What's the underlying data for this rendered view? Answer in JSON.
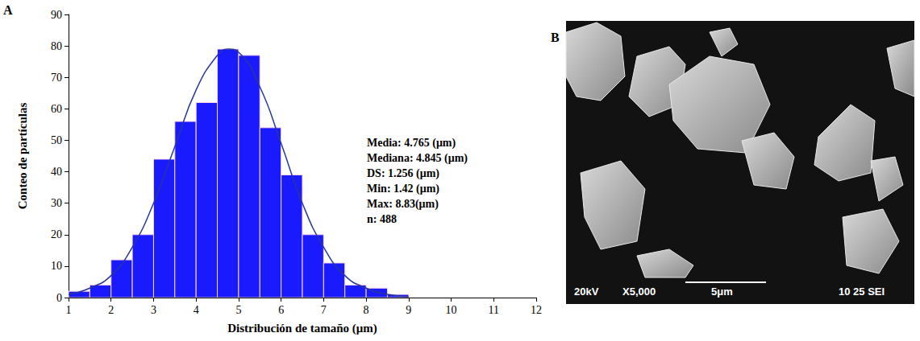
{
  "chart_data": {
    "type": "histogram",
    "panel_label": "A",
    "x_label": "Distribución de tamaño (μm)",
    "y_label": "Conteo de partículas",
    "bins": [
      1,
      1.5,
      2,
      2.5,
      3,
      3.5,
      4,
      4.5,
      5,
      5.5,
      6,
      6.5,
      7,
      7.5,
      8,
      8.5,
      9
    ],
    "counts": [
      2,
      4,
      12,
      20,
      44,
      56,
      62,
      79,
      77,
      54,
      39,
      20,
      11,
      4,
      3,
      1
    ],
    "color": "#1a1aff",
    "curve": {
      "type": "line",
      "color": "#27379a",
      "x": [
        1,
        1.5,
        2,
        2.5,
        3,
        3.5,
        4,
        4.5,
        4.75,
        5,
        5.5,
        6,
        6.5,
        7,
        7.5,
        8,
        8.5,
        9
      ],
      "values": [
        1,
        3,
        7,
        16,
        30,
        48,
        66,
        77,
        79,
        78,
        67,
        49,
        30,
        16,
        7,
        3,
        1,
        0.3
      ]
    },
    "annotations": [
      "Media: 4.765 (μm)",
      "Mediana: 4.845 (μm)",
      "DS: 1.256 (μm)",
      "Min: 1.42 (μm)",
      "Max: 8.83(μm)",
      "n: 488"
    ],
    "xlim": [
      1,
      12
    ],
    "xticks": [
      1,
      2,
      3,
      4,
      5,
      6,
      7,
      8,
      9,
      10,
      11,
      12
    ],
    "ylim": [
      0,
      90
    ],
    "yticks": [
      0,
      10,
      20,
      30,
      40,
      50,
      60,
      70,
      80,
      90
    ],
    "grid": false
  },
  "image_panel": {
    "panel_label": "B",
    "footer": {
      "voltage": "20kV",
      "magnification": "X5,000",
      "scale": "5μm",
      "info": "10 25 SEI"
    }
  }
}
